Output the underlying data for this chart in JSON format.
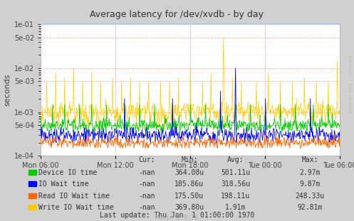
{
  "title": "Average latency for /dev/xvdb - by day",
  "ylabel": "seconds",
  "bg_color": "#d0d0d0",
  "plot_bg_color": "#ffffff",
  "x_tick_labels": [
    "Mon 06:00",
    "Mon 12:00",
    "Mon 18:00",
    "Tue 00:00",
    "Tue 06:00"
  ],
  "ylim_min": 0.0001,
  "ylim_max": 0.1,
  "yticks": [
    0.0001,
    0.0005,
    0.001,
    0.005,
    0.01,
    0.05,
    0.1
  ],
  "ytick_labels": [
    "1e-04",
    "5e-04",
    "1e-03",
    "5e-03",
    "1e-02",
    "5e-02",
    "1e-01"
  ],
  "colors": {
    "device_io": "#00cc00",
    "io_wait": "#0000ff",
    "read_io": "#ff6600",
    "write_io": "#ffcc00"
  },
  "legend": [
    {
      "label": "Device IO time",
      "color": "#00cc00",
      "cur": "-nan",
      "min": "364.08u",
      "avg": "501.11u",
      "max": "2.97m"
    },
    {
      "label": "IO Wait time",
      "color": "#0000ff",
      "cur": "-nan",
      "min": "185.86u",
      "avg": "318.56u",
      "max": "9.87m"
    },
    {
      "label": "Read IO Wait time",
      "color": "#ff6600",
      "cur": "-nan",
      "min": "175.50u",
      "avg": "198.11u",
      "max": "248.33u"
    },
    {
      "label": "Write IO Wait time",
      "color": "#ffcc00",
      "cur": "-nan",
      "min": "369.80u",
      "avg": "1.91m",
      "max": "92.81m"
    }
  ],
  "footer": "Last update: Thu Jan  1 01:00:00 1970",
  "munin_version": "Munin 2.0.75",
  "rrdtool_label": "RRDTOOL / TOBI OETIKER",
  "num_points": 600
}
